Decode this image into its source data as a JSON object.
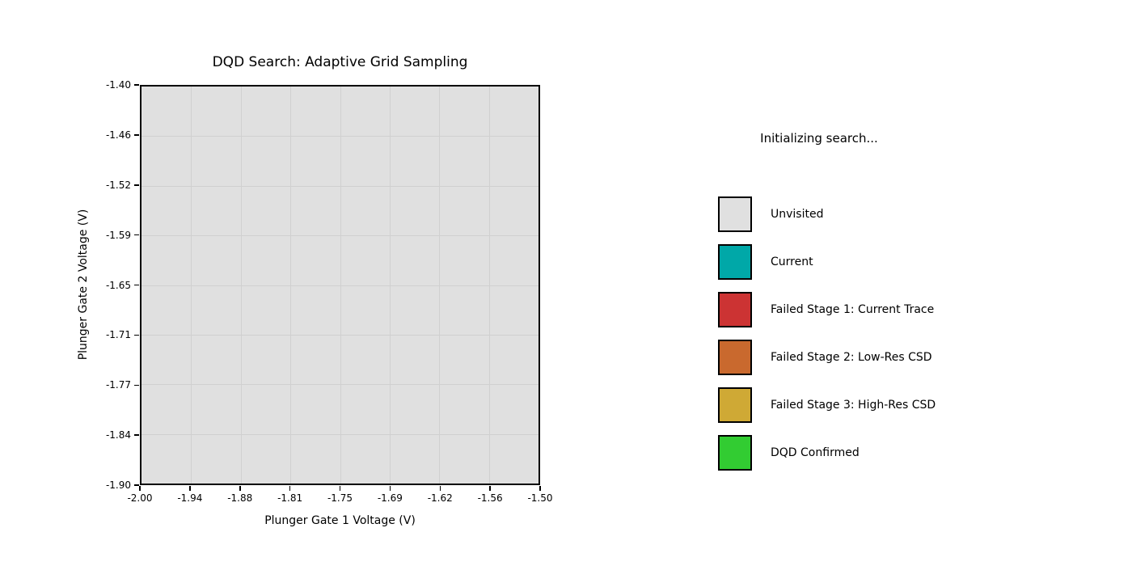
{
  "figure": {
    "background": "#ffffff",
    "status_text": "Initializing search..."
  },
  "chart_data": {
    "type": "heatmap",
    "title": "DQD Search: Adaptive Grid Sampling",
    "xlabel": "Plunger Gate 1 Voltage (V)",
    "ylabel": "Plunger Gate 2 Voltage (V)",
    "xlim": [
      -2.0,
      -1.5
    ],
    "ylim": [
      -1.9,
      -1.4
    ],
    "xticks": [
      "-2.00",
      "-1.94",
      "-1.88",
      "-1.81",
      "-1.75",
      "-1.69",
      "-1.62",
      "-1.56",
      "-1.50"
    ],
    "yticks": [
      "-1.40",
      "-1.46",
      "-1.52",
      "-1.59",
      "-1.65",
      "-1.71",
      "-1.77",
      "-1.84",
      "-1.90"
    ],
    "grid": true,
    "grid_divisions": 8,
    "cells": {
      "state": "all Unvisited - no samples plotted yet",
      "uniform_color": "#e0e0e0"
    },
    "legend": {
      "position": "right of plot",
      "items": [
        {
          "label": "Unvisited",
          "color": "#e0e0e0"
        },
        {
          "label": "Current",
          "color": "#00a8a8"
        },
        {
          "label": "Failed Stage 1: Current Trace",
          "color": "#cc3333"
        },
        {
          "label": "Failed Stage 2: Low-Res CSD",
          "color": "#c9692e"
        },
        {
          "label": "Failed Stage 3: High-Res CSD",
          "color": "#cfa935"
        },
        {
          "label": "DQD Confirmed",
          "color": "#32cc32"
        }
      ]
    }
  },
  "colors": {
    "plot_bg": "#e0e0e0",
    "grid_line": "#d0d0d0",
    "spine": "#000000",
    "text": "#000000",
    "background": "#ffffff"
  }
}
